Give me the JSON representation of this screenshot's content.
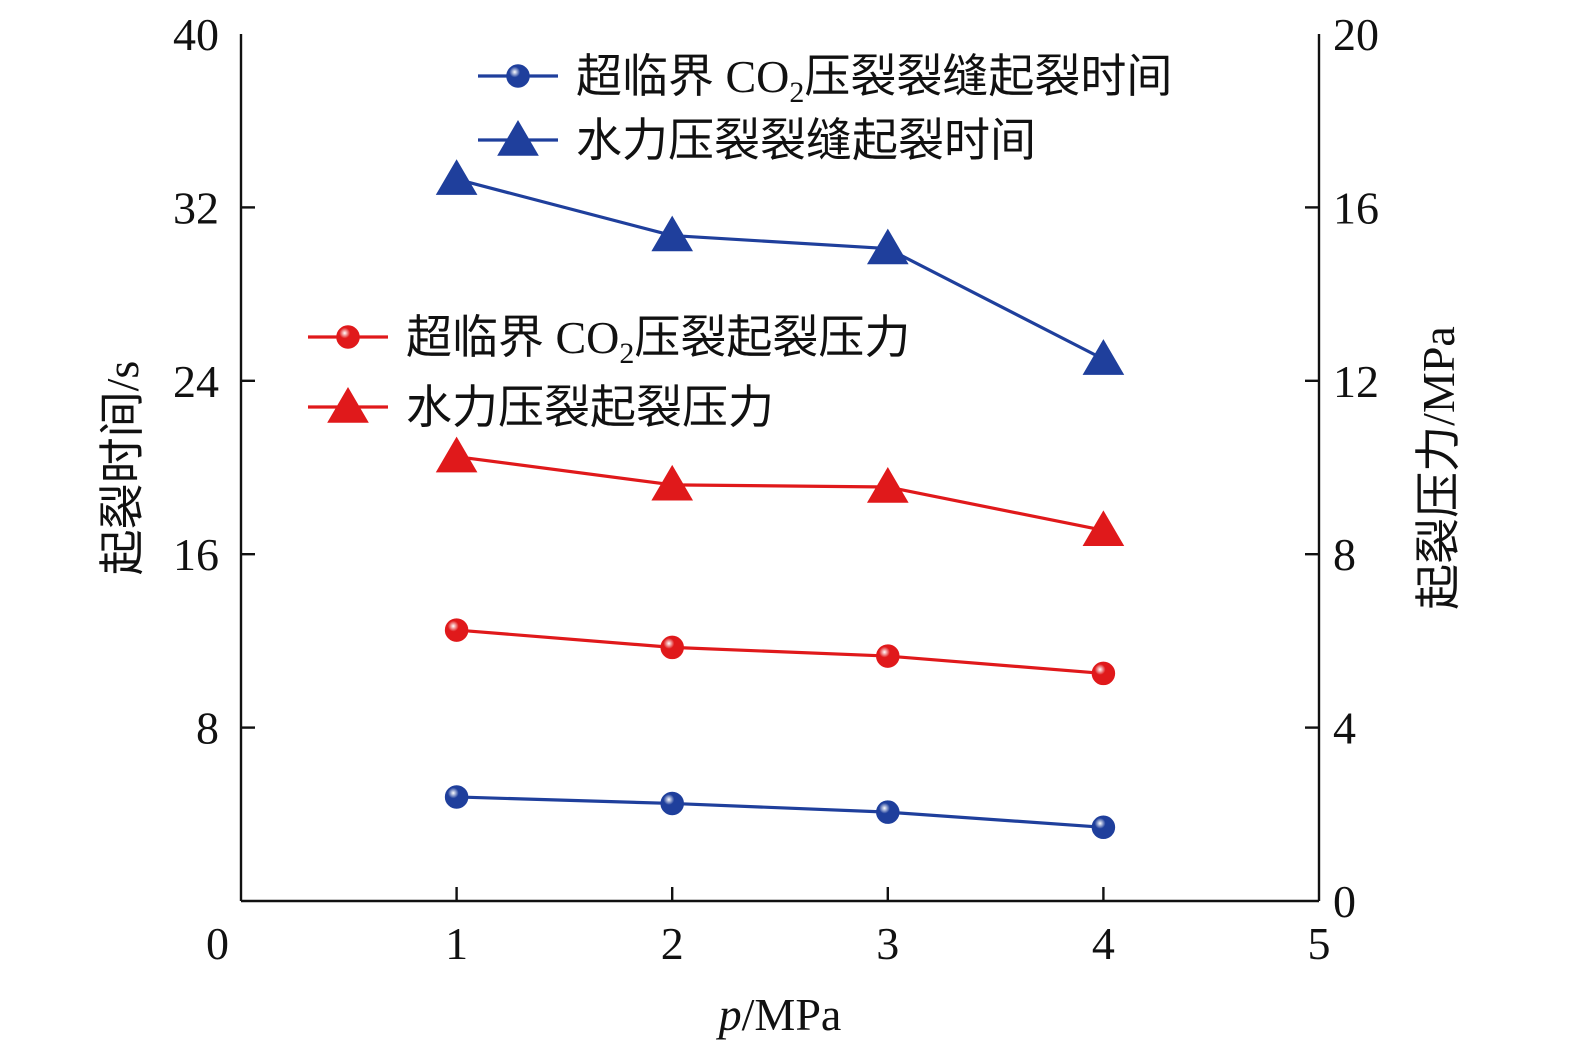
{
  "chart_data": {
    "type": "line",
    "x_axis": {
      "label_italic": "p",
      "label_rest": "/MPa",
      "ticks": [
        0,
        1,
        2,
        3,
        4,
        5
      ],
      "range": [
        0,
        5
      ]
    },
    "y_left": {
      "label": "起裂时间/s",
      "ticks": [
        0,
        8,
        16,
        24,
        32,
        40
      ],
      "range": [
        0,
        40
      ]
    },
    "y_right": {
      "label": "起裂压力/MPa",
      "ticks": [
        0,
        4,
        8,
        12,
        16,
        20
      ],
      "range": [
        0,
        20
      ]
    },
    "x": [
      1,
      2,
      3,
      4
    ],
    "series": [
      {
        "id": "sc-co2-time",
        "name_parts": [
          "超临界 CO",
          "2",
          "压裂裂缝起裂时间"
        ],
        "axis": "left",
        "marker": "circle",
        "color": "#1f3f9c",
        "values": [
          4.8,
          4.5,
          4.1,
          3.4
        ]
      },
      {
        "id": "water-time",
        "name_parts": [
          "水力压裂裂缝起裂时间"
        ],
        "axis": "left",
        "marker": "triangle",
        "color": "#1f3f9c",
        "values": [
          33.3,
          30.7,
          30.1,
          25.0
        ]
      },
      {
        "id": "sc-co2-pressure",
        "name_parts": [
          "超临界 CO",
          "2",
          "压裂起裂压力"
        ],
        "axis": "right",
        "marker": "circle",
        "color": "#e0191b",
        "values": [
          6.25,
          5.85,
          5.65,
          5.25
        ]
      },
      {
        "id": "water-pressure",
        "name_parts": [
          "水力压裂起裂压力"
        ],
        "axis": "right",
        "marker": "triangle",
        "color": "#e0191b",
        "values": [
          10.25,
          9.6,
          9.55,
          8.55
        ]
      }
    ],
    "legends": [
      {
        "position": "top-right",
        "series": [
          "sc-co2-time",
          "water-time"
        ]
      },
      {
        "position": "center-left",
        "series": [
          "sc-co2-pressure",
          "water-pressure"
        ]
      }
    ],
    "grid": false
  }
}
